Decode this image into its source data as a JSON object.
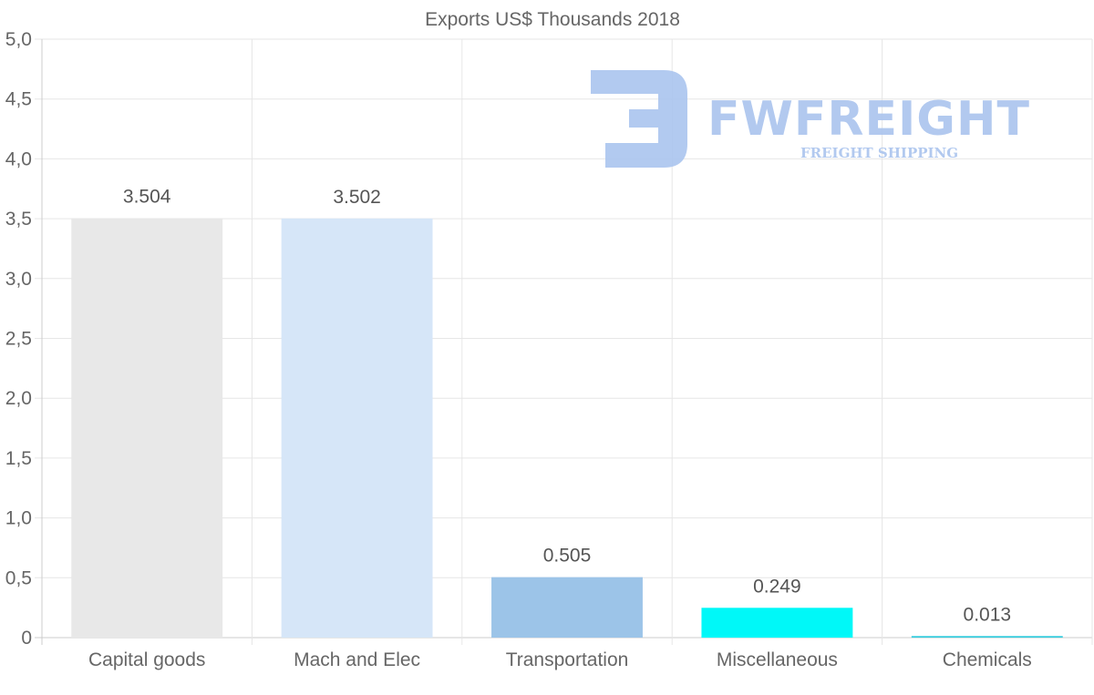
{
  "chart_data": {
    "type": "bar",
    "title": "Exports US$ Thousands 2018",
    "categories": [
      "Capital goods",
      "Mach and Elec",
      "Transportation",
      "Miscellaneous",
      "Chemicals"
    ],
    "values": [
      3.504,
      3.502,
      0.505,
      0.249,
      0.013
    ],
    "value_labels": [
      "3.504",
      "3.502",
      "0.505",
      "0.249",
      "0.013"
    ],
    "colors": [
      "#e8e8e8",
      "#d6e6f8",
      "#9cc4e8",
      "#00f8f8",
      "#33ccdd"
    ],
    "ylim": [
      0,
      5
    ],
    "yticks": [
      0,
      0.5,
      1,
      1.5,
      2,
      2.5,
      3,
      3.5,
      4,
      4.5,
      5
    ],
    "ytick_labels": [
      "0",
      "0,5",
      "1,0",
      "1,5",
      "2,0",
      "2,5",
      "3,0",
      "3,5",
      "4,0",
      "4,5",
      "5,0"
    ],
    "xlabel": "",
    "ylabel": "",
    "grid": true,
    "legend": "none"
  },
  "watermark": {
    "logo_icon": "fwfreight-logo-icon",
    "text": "FWFREIGHT",
    "subtext": "FREIGHT SHIPPING",
    "color": "#aac4ee"
  }
}
